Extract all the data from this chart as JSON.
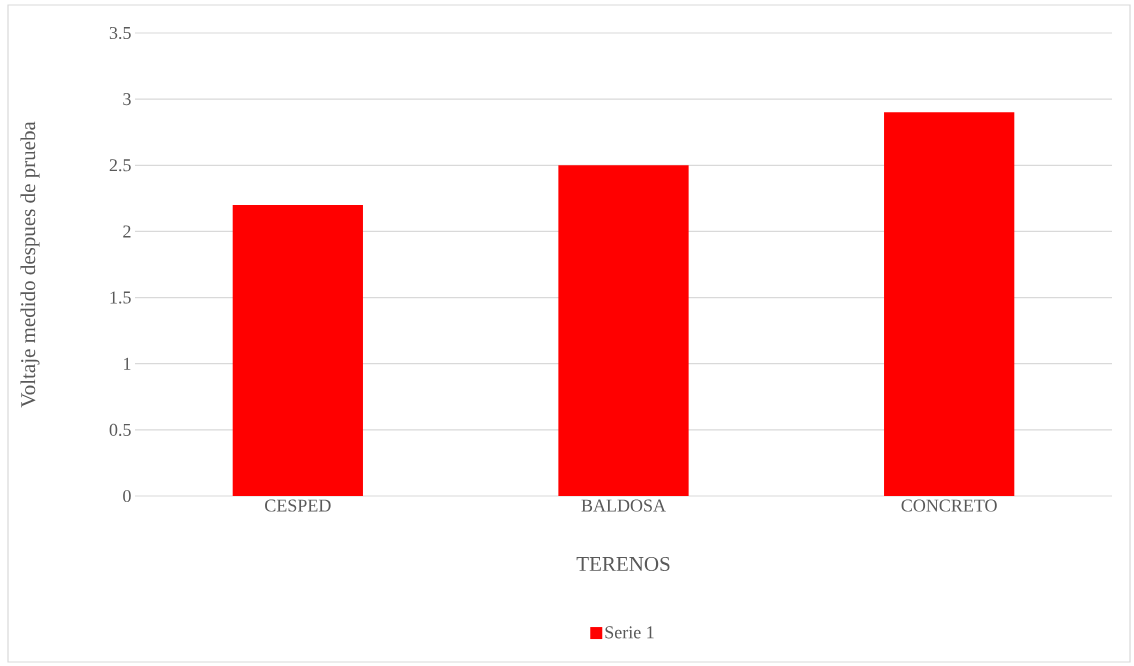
{
  "chart_data": {
    "type": "bar",
    "xlabel": "TERENOS",
    "ylabel": "Voltaje medido despues de prueba",
    "categories": [
      "CESPED",
      "BALDOSA",
      "CONCRETO"
    ],
    "series": [
      {
        "name": "Serie 1",
        "color": "#ff0000",
        "values": [
          2.2,
          2.5,
          2.9
        ]
      }
    ],
    "ylim": [
      0,
      3.5
    ],
    "yticks": [
      0,
      0.5,
      1,
      1.5,
      2,
      2.5,
      3,
      3.5
    ],
    "grid": "y",
    "legend": "bottom"
  }
}
